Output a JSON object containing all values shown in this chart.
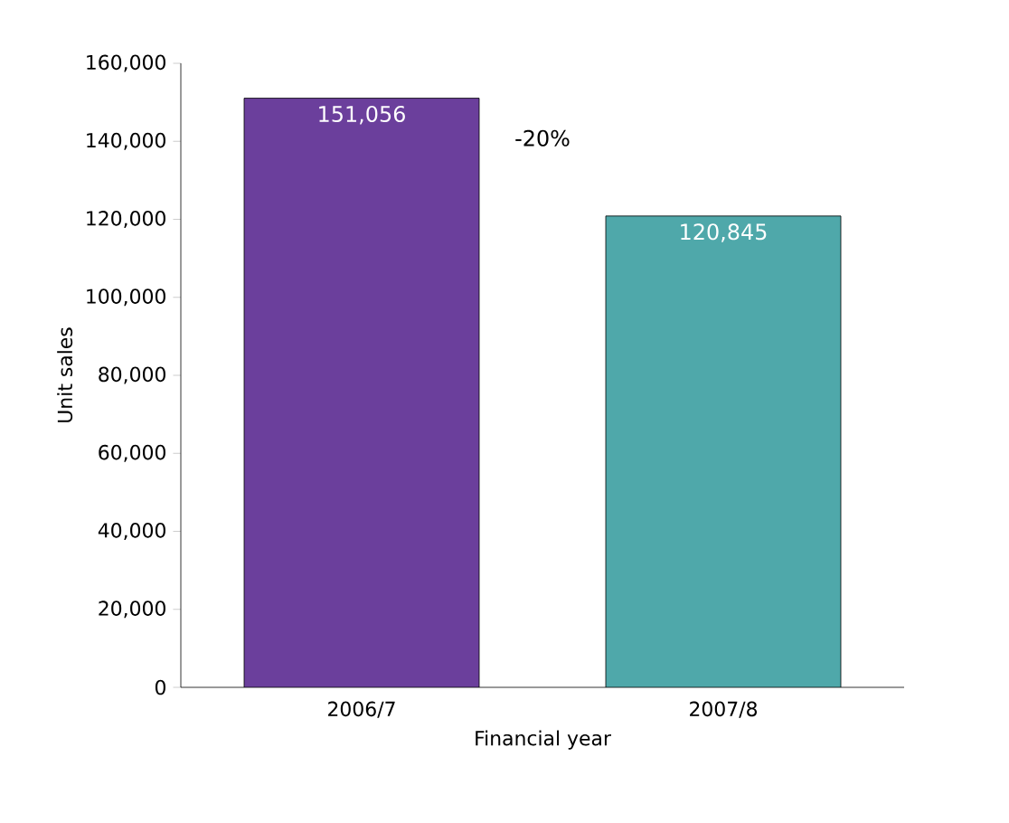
{
  "chart_data": {
    "type": "bar",
    "xlabel": "Financial year",
    "ylabel": "Unit sales",
    "categories": [
      "2006/7",
      "2007/8"
    ],
    "values": [
      151056,
      120845
    ],
    "colors": [
      "#6b3f9c",
      "#4fa8aa"
    ],
    "value_labels": [
      "151,056",
      "120,845"
    ],
    "ylim": [
      0,
      160000
    ],
    "yticks": [
      {
        "value": 0,
        "label": "0"
      },
      {
        "value": 20000,
        "label": "20,000"
      },
      {
        "value": 40000,
        "label": "40,000"
      },
      {
        "value": 60000,
        "label": "60,000"
      },
      {
        "value": 80000,
        "label": "80,000"
      },
      {
        "value": 100000,
        "label": "100,000"
      },
      {
        "value": 120000,
        "label": "120,000"
      },
      {
        "value": 140000,
        "label": "140,000"
      },
      {
        "value": 160000,
        "label": "160,000"
      }
    ],
    "annotations": [
      "-20%"
    ]
  }
}
